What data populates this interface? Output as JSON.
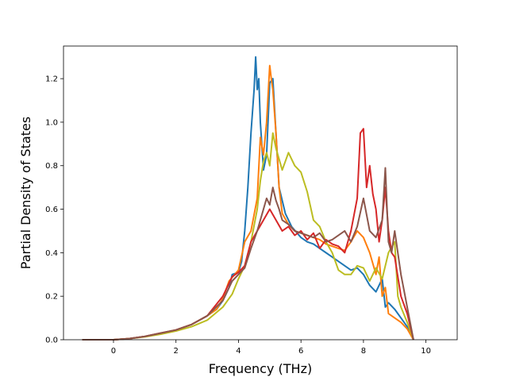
{
  "chart_data": {
    "type": "line",
    "title": "",
    "xlabel": "Frequency (THz)",
    "ylabel": "Partial Density of States",
    "xlim": [
      -1.6,
      11.0
    ],
    "ylim": [
      0.0,
      1.35
    ],
    "xticks": [
      0,
      2,
      4,
      6,
      8,
      10
    ],
    "yticks": [
      0.0,
      0.2,
      0.4,
      0.6,
      0.8,
      1.0,
      1.2
    ],
    "xtick_labels": [
      "0",
      "2",
      "4",
      "6",
      "8",
      "10"
    ],
    "ytick_labels": [
      "0.0",
      "0.2",
      "0.4",
      "0.6",
      "0.8",
      "1.0",
      "1.2"
    ],
    "grid": false,
    "legend": "none",
    "series": [
      {
        "color": "#1f77b4",
        "x": [
          -1.0,
          0.0,
          0.5,
          1.0,
          1.5,
          2.0,
          2.5,
          3.0,
          3.3,
          3.5,
          3.7,
          3.8,
          4.0,
          4.1,
          4.2,
          4.3,
          4.4,
          4.5,
          4.55,
          4.6,
          4.65,
          4.7,
          4.8,
          4.9,
          5.0,
          5.1,
          5.2,
          5.3,
          5.5,
          5.7,
          6.0,
          6.2,
          6.4,
          6.6,
          6.8,
          7.0,
          7.2,
          7.4,
          7.6,
          7.8,
          8.0,
          8.2,
          8.4,
          8.6,
          8.7,
          8.8,
          9.0,
          9.2,
          9.4,
          9.6
        ],
        "y": [
          0.0,
          0.0,
          0.005,
          0.015,
          0.03,
          0.045,
          0.07,
          0.11,
          0.14,
          0.18,
          0.24,
          0.3,
          0.31,
          0.36,
          0.5,
          0.7,
          0.95,
          1.15,
          1.3,
          1.15,
          1.2,
          1.0,
          0.78,
          0.85,
          1.18,
          1.2,
          0.95,
          0.7,
          0.58,
          0.52,
          0.47,
          0.45,
          0.44,
          0.42,
          0.4,
          0.38,
          0.36,
          0.34,
          0.32,
          0.33,
          0.3,
          0.25,
          0.22,
          0.28,
          0.15,
          0.17,
          0.14,
          0.1,
          0.06,
          0.0
        ]
      },
      {
        "color": "#ff7f0e",
        "x": [
          -1.0,
          0.0,
          0.5,
          1.0,
          1.5,
          2.0,
          2.5,
          3.0,
          3.3,
          3.5,
          3.7,
          4.0,
          4.2,
          4.4,
          4.6,
          4.7,
          4.8,
          4.9,
          5.0,
          5.05,
          5.1,
          5.2,
          5.3,
          5.4,
          5.6,
          5.8,
          6.0,
          6.2,
          6.4,
          6.6,
          6.8,
          7.0,
          7.2,
          7.4,
          7.6,
          7.8,
          8.0,
          8.2,
          8.4,
          8.5,
          8.6,
          8.7,
          8.8,
          9.0,
          9.2,
          9.4,
          9.6
        ],
        "y": [
          0.0,
          0.0,
          0.005,
          0.015,
          0.03,
          0.045,
          0.07,
          0.11,
          0.14,
          0.19,
          0.27,
          0.32,
          0.45,
          0.5,
          0.65,
          0.93,
          0.85,
          1.0,
          1.26,
          1.2,
          1.15,
          0.95,
          0.7,
          0.58,
          0.53,
          0.5,
          0.49,
          0.48,
          0.47,
          0.46,
          0.44,
          0.43,
          0.42,
          0.41,
          0.45,
          0.5,
          0.47,
          0.4,
          0.3,
          0.38,
          0.2,
          0.24,
          0.12,
          0.1,
          0.08,
          0.05,
          0.0
        ]
      },
      {
        "color": "#bcbd22",
        "x": [
          -1.0,
          0.0,
          0.5,
          1.0,
          1.5,
          2.0,
          2.5,
          3.0,
          3.5,
          3.8,
          4.0,
          4.2,
          4.4,
          4.6,
          4.7,
          4.8,
          4.9,
          5.0,
          5.1,
          5.2,
          5.4,
          5.6,
          5.8,
          6.0,
          6.2,
          6.4,
          6.6,
          6.8,
          7.0,
          7.2,
          7.4,
          7.6,
          7.8,
          8.0,
          8.2,
          8.4,
          8.6,
          8.8,
          9.0,
          9.1,
          9.2,
          9.4,
          9.6
        ],
        "y": [
          0.0,
          0.0,
          0.005,
          0.013,
          0.025,
          0.04,
          0.06,
          0.09,
          0.15,
          0.21,
          0.28,
          0.34,
          0.45,
          0.6,
          0.73,
          0.82,
          0.86,
          0.8,
          0.95,
          0.88,
          0.78,
          0.86,
          0.8,
          0.77,
          0.68,
          0.55,
          0.52,
          0.45,
          0.4,
          0.32,
          0.3,
          0.3,
          0.34,
          0.33,
          0.27,
          0.33,
          0.28,
          0.4,
          0.45,
          0.2,
          0.15,
          0.08,
          0.0
        ]
      },
      {
        "color": "#d62728",
        "x": [
          -1.0,
          0.0,
          0.5,
          1.0,
          1.5,
          2.0,
          2.5,
          3.0,
          3.5,
          3.8,
          4.0,
          4.2,
          4.4,
          4.6,
          4.8,
          5.0,
          5.2,
          5.4,
          5.6,
          5.8,
          6.0,
          6.2,
          6.4,
          6.6,
          6.8,
          7.0,
          7.2,
          7.4,
          7.6,
          7.8,
          7.9,
          8.0,
          8.1,
          8.2,
          8.3,
          8.4,
          8.5,
          8.6,
          8.7,
          8.8,
          8.9,
          9.0,
          9.2,
          9.4,
          9.6
        ],
        "y": [
          0.0,
          0.0,
          0.005,
          0.015,
          0.03,
          0.045,
          0.07,
          0.11,
          0.2,
          0.29,
          0.31,
          0.34,
          0.45,
          0.5,
          0.55,
          0.6,
          0.55,
          0.5,
          0.52,
          0.48,
          0.5,
          0.46,
          0.49,
          0.42,
          0.46,
          0.44,
          0.43,
          0.4,
          0.5,
          0.65,
          0.95,
          0.97,
          0.7,
          0.8,
          0.67,
          0.6,
          0.45,
          0.55,
          0.7,
          0.5,
          0.4,
          0.38,
          0.2,
          0.12,
          0.0
        ]
      },
      {
        "color": "#8c564b",
        "x": [
          -1.0,
          0.0,
          0.5,
          1.0,
          1.5,
          2.0,
          2.5,
          3.0,
          3.5,
          3.8,
          4.0,
          4.2,
          4.4,
          4.6,
          4.8,
          4.9,
          5.0,
          5.1,
          5.2,
          5.3,
          5.4,
          5.6,
          5.8,
          6.0,
          6.2,
          6.4,
          6.6,
          6.8,
          7.0,
          7.2,
          7.4,
          7.6,
          7.8,
          8.0,
          8.2,
          8.4,
          8.6,
          8.7,
          8.8,
          8.9,
          9.0,
          9.2,
          9.4,
          9.6
        ],
        "y": [
          0.0,
          0.0,
          0.005,
          0.015,
          0.03,
          0.045,
          0.07,
          0.11,
          0.18,
          0.27,
          0.3,
          0.33,
          0.42,
          0.5,
          0.6,
          0.65,
          0.62,
          0.7,
          0.64,
          0.6,
          0.55,
          0.53,
          0.5,
          0.49,
          0.48,
          0.47,
          0.49,
          0.45,
          0.46,
          0.48,
          0.5,
          0.45,
          0.52,
          0.65,
          0.5,
          0.47,
          0.55,
          0.79,
          0.45,
          0.4,
          0.5,
          0.3,
          0.15,
          0.0
        ]
      }
    ]
  }
}
